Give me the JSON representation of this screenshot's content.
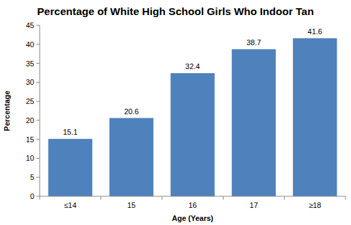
{
  "chart_data": {
    "type": "bar",
    "title": "Percentage of White High School Girls Who Indoor Tan",
    "x_label": "Age (Years)",
    "y_label": "Percentage",
    "categories": [
      "≤14",
      "15",
      "16",
      "17",
      "≥18"
    ],
    "values": [
      15.1,
      20.6,
      32.4,
      38.7,
      41.6
    ],
    "color": "#4f81bd",
    "ylim": [
      0,
      45
    ],
    "yticks": [
      0,
      5,
      10,
      15,
      20,
      25,
      30,
      35,
      40,
      45
    ],
    "grid": false,
    "data_labels": true
  }
}
